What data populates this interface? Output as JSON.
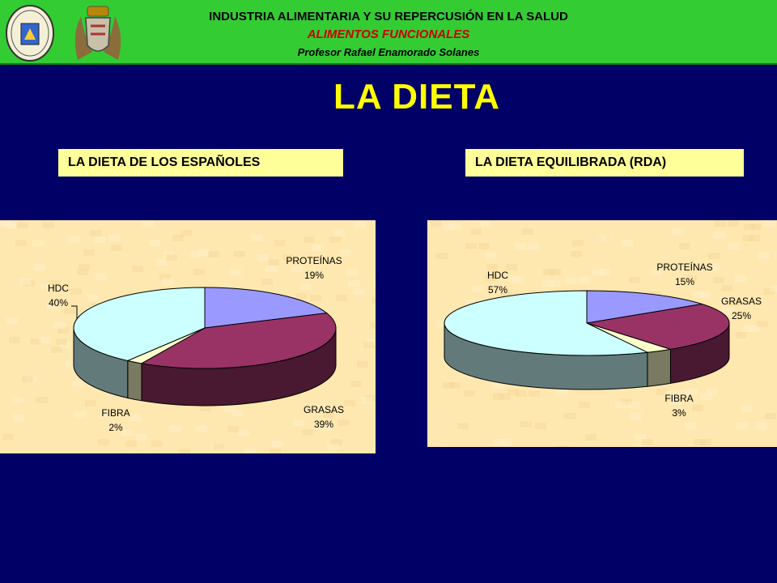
{
  "header": {
    "line1": "INDUSTRIA ALIMENTARIA Y SU REPERCUSIÓN EN LA SALUD",
    "line2": "ALIMENTOS FUNCIONALES",
    "line3": "Profesor Rafael Enamorado Solanes",
    "logo_left": "university-seal",
    "logo_right": "crest-emblem"
  },
  "title": "LA DIETA",
  "colors": {
    "background": "#000066",
    "header": "#33cc33",
    "title": "#ffff00",
    "label_box": "#ffff99",
    "proteinas": "#9999ff",
    "grasas": "#993366",
    "fibra": "#ffffcc",
    "hdc": "#ccffff"
  },
  "chart_data": [
    {
      "type": "pie",
      "title": "LA DIETA DE LOS ESPAÑOLES",
      "slices": [
        {
          "name": "PROTEÍNAS",
          "value": 19,
          "pct_label": "19%"
        },
        {
          "name": "GRASAS",
          "value": 39,
          "pct_label": "39%"
        },
        {
          "name": "FIBRA",
          "value": 2,
          "pct_label": "2%"
        },
        {
          "name": "HDC",
          "value": 40,
          "pct_label": "40%"
        }
      ]
    },
    {
      "type": "pie",
      "title": "LA DIETA EQUILIBRADA (RDA)",
      "slices": [
        {
          "name": "PROTEÍNAS",
          "value": 15,
          "pct_label": "15%"
        },
        {
          "name": "GRASAS",
          "value": 25,
          "pct_label": "25%"
        },
        {
          "name": "FIBRA",
          "value": 3,
          "pct_label": "3%"
        },
        {
          "name": "HDC",
          "value": 57,
          "pct_label": "57%"
        }
      ]
    }
  ]
}
